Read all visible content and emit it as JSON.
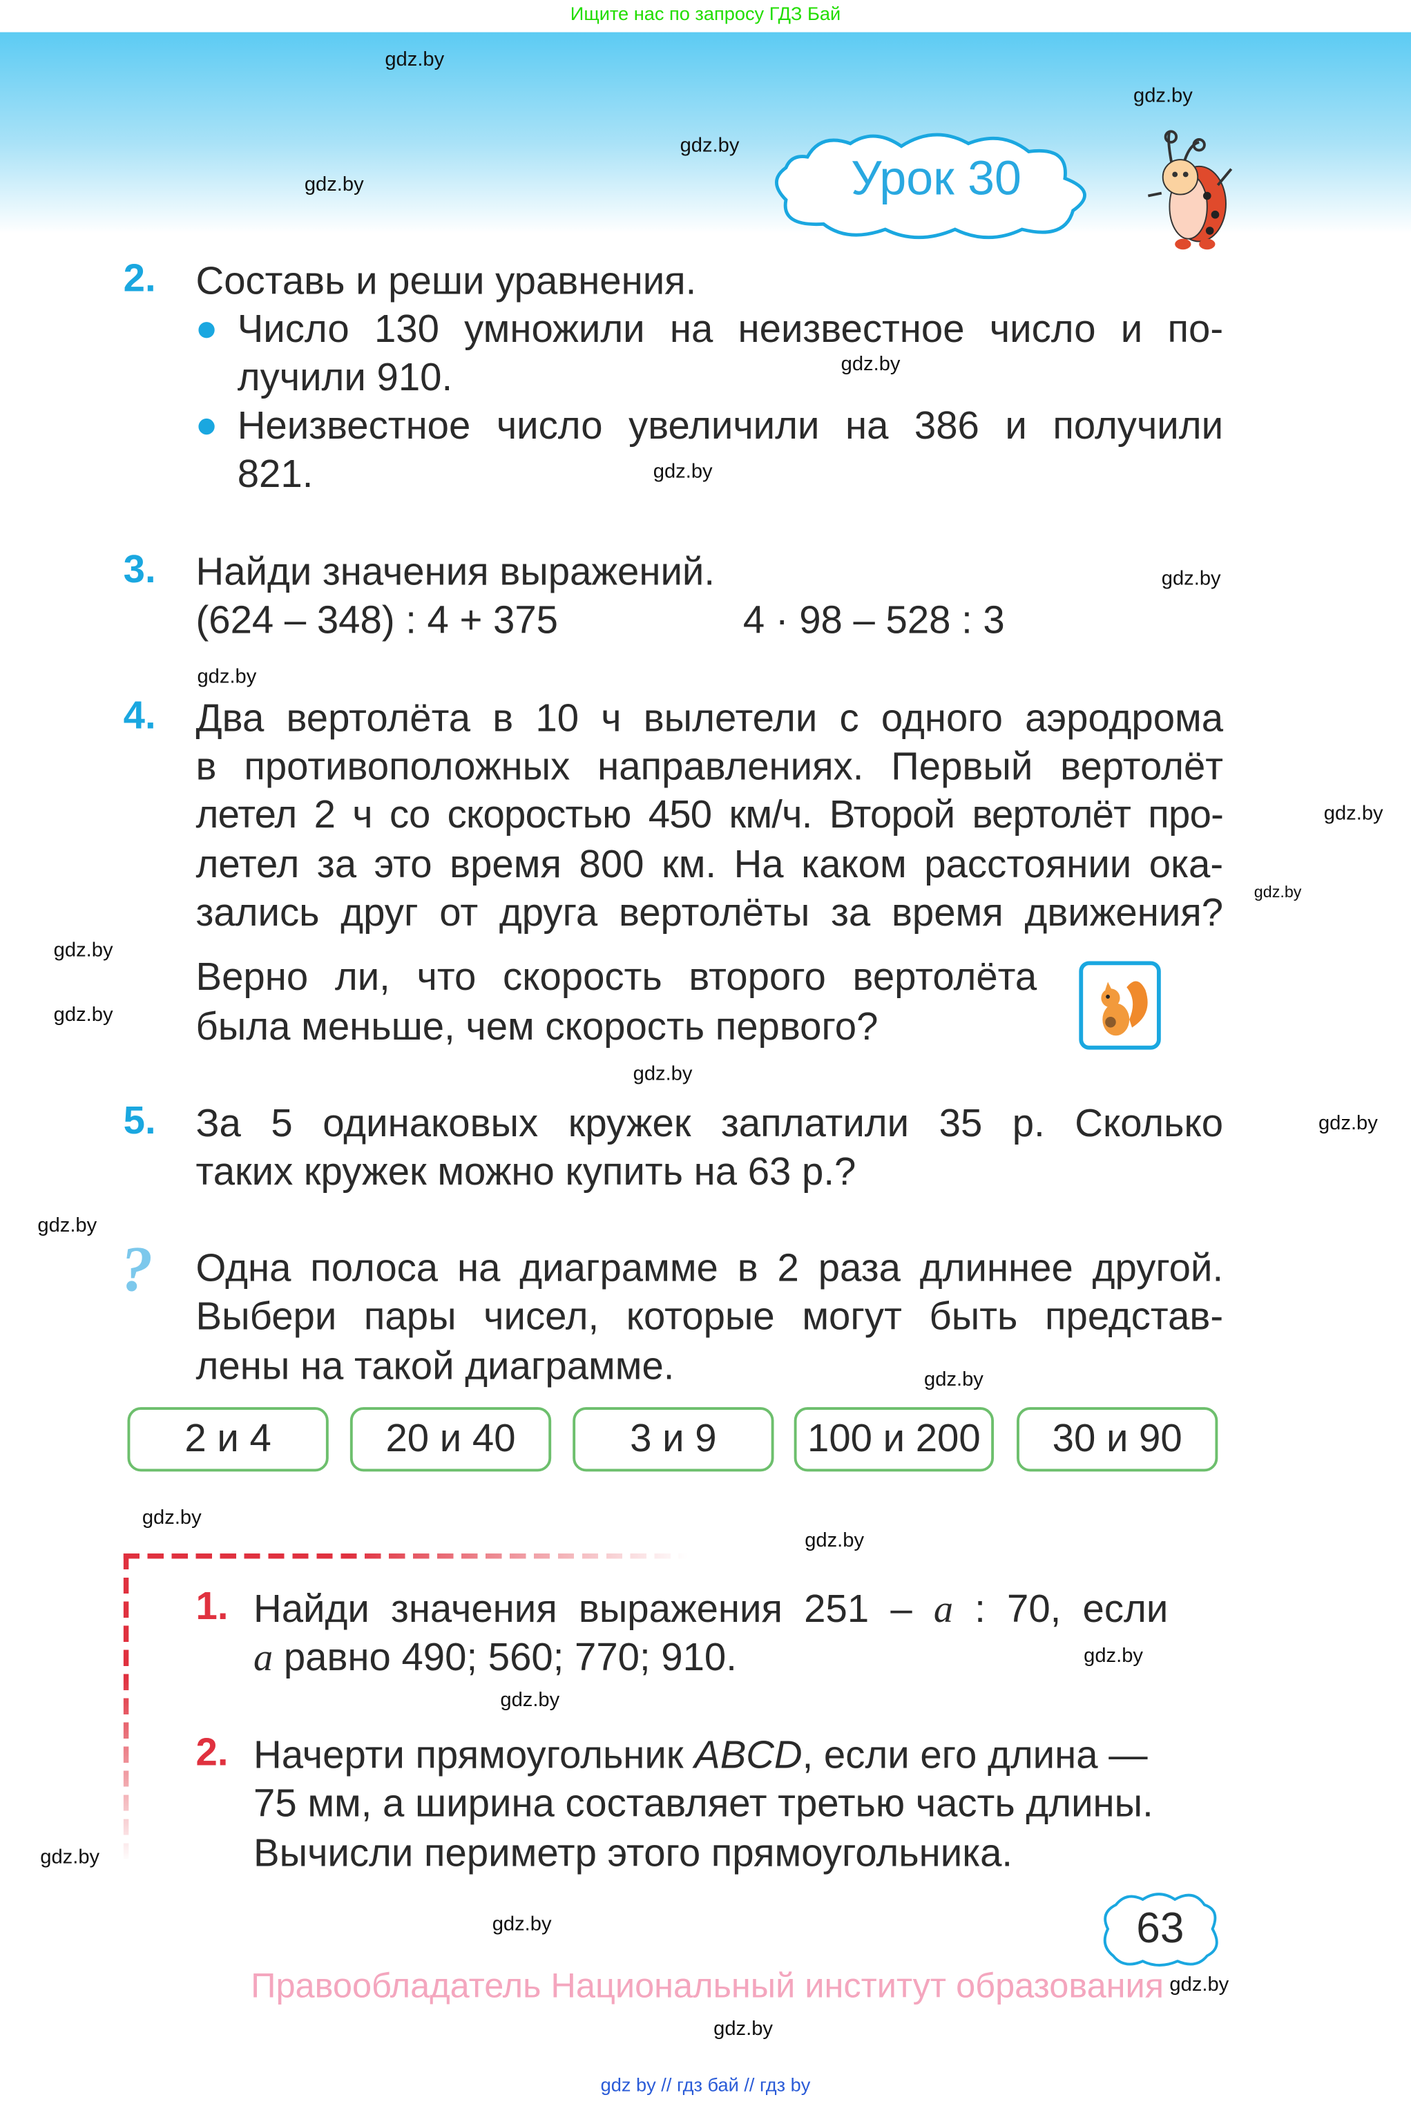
{
  "top_note": "Ищите нас по запросу ГДЗ Бай",
  "lesson_title": "Урок 30",
  "watermark": "gdz.by",
  "task2": {
    "number": "2.",
    "lines": [
      "Составь и реши уравнения.",
      "Число 130 умножили на неизвестное число и по-",
      "лучили 910.",
      "Неизвестное число увеличили на 386 и получили",
      "821."
    ]
  },
  "task3": {
    "number": "3.",
    "title": "Найди значения выражений.",
    "expr1": "(624 – 348) : 4 + 375",
    "expr2": "4 · 98 – 528 : 3"
  },
  "task4": {
    "number": "4.",
    "lines": [
      "Два вертолёта в 10 ч вылетели с одного аэродрома",
      "в противоположных направлениях. Первый вертолёт",
      "летел 2 ч со скоростью 450 км/ч. Второй вертолёт про-",
      "летел за это время 800 км. На каком расстоянии ока-",
      "зались друг от друга вертолёты за время движения?",
      "Верно ли, что скорость второго вертолёта",
      "была меньше, чем скорость первого?"
    ]
  },
  "task5": {
    "number": "5.",
    "lines": [
      "За 5 одинаковых кружек заплатили 35 р. Сколько",
      "таких кружек можно купить на 63 р.?"
    ]
  },
  "question": {
    "icon": "question-mark-icon",
    "lines": [
      "Одна полоса на диаграмме в 2 раза длиннее другой.",
      "Выбери пары чисел, которые могут быть представ-",
      "лены на такой диаграмме."
    ],
    "options": [
      "2 и 4",
      "20 и 40",
      "3 и 9",
      "100 и 200",
      "30 и 90"
    ]
  },
  "extra1": {
    "number": "1.",
    "line1a": "Найди значения выражения 251 –",
    "var": "a",
    "line1b": ": 70, если",
    "line2": "равно 490; 560; 770; 910."
  },
  "extra2": {
    "number": "2.",
    "line1a": "Начерти прямоугольник",
    "abcd": "ABCD",
    "line1b": ", если его длина —",
    "line2": "75 мм, а ширина составляет третью часть длины.",
    "line3": "Вычисли периметр этого прямоугольника."
  },
  "page_number": "63",
  "copyright": "Правообладатель Национальный институт образования",
  "footer": {
    "link1": "gdz by",
    "sep": "//",
    "link2": "гдз бай",
    "link3": "гдз by"
  },
  "colors": {
    "accent_blue": "#1aa7e0",
    "red": "#e0313f",
    "green_border": "#6dbf6d",
    "pink": "#f4a6be"
  }
}
